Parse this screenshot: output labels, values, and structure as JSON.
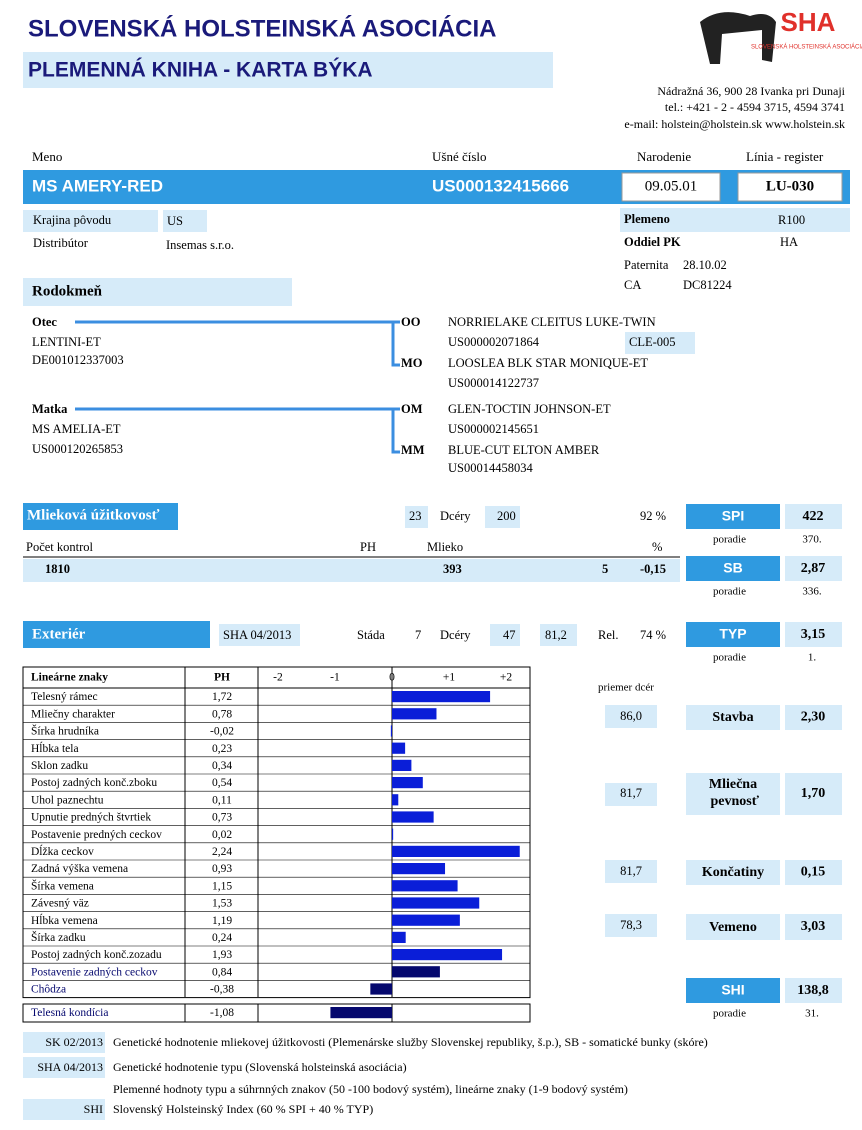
{
  "header": {
    "title1": "SLOVENSKÁ HOLSTEINSKÁ ASOCIÁCIA",
    "title2": "PLEMENNÁ KNIHA - KARTA BÝKA",
    "logo": "SHA",
    "logo_sub": "SLOVENSKÁ HOLSTEINSKÁ ASOCIÁCIA",
    "address": [
      "Nádražná 36, 900 28 Ivanka pri Dunaji",
      "tel.: +421 - 2 - 4594 3715, 4594 3741",
      "e-mail: holstein@holstein.sk    www.holstein.sk"
    ]
  },
  "identity": {
    "labels": [
      "Meno",
      "Ušné číslo",
      "Narodenie",
      "Línia - register"
    ],
    "name": "MS AMERY-RED",
    "ear_tag": "US000132415666",
    "born": "09.05.01",
    "line": "LU-030"
  },
  "info": {
    "country_label": "Krajina pôvodu",
    "country": "US",
    "distributor_label": "Distribútor",
    "distributor": "Insemas s.r.o.",
    "breed_label": "Plemeno",
    "breed": "R100",
    "section_label": "Oddiel PK",
    "section": "HA",
    "paternity_label": "Paternita",
    "paternity": "28.10.02",
    "ca_label": "CA",
    "ca": "DC81224"
  },
  "pedigree": {
    "title": "Rodokmeň",
    "sire_label": "Otec",
    "sire": "LENTINI-ET",
    "sire_id": "DE001012337003",
    "oo_label": "OO",
    "oo": "NORRIELAKE CLEITUS LUKE-TWIN",
    "oo_id": "US000002071864",
    "oo_code": "CLE-005",
    "mo_label": "MO",
    "mo": "LOOSLEA BLK STAR MONIQUE-ET",
    "mo_id": "US000014122737",
    "dam_label": "Matka",
    "dam": "MS AMELIA-ET",
    "dam_id": "US000120265853",
    "om_label": "OM",
    "om": "GLEN-TOCTIN JOHNSON-ET",
    "om_id": "US000002145651",
    "mm_label": "MM",
    "mm": "BLUE-CUT ELTON AMBER",
    "mm_id": "US00014458034"
  },
  "milk": {
    "title": "Mlieková úžitkovosť",
    "herds": "23",
    "daughters_label": "Dcéry",
    "daughters": "200",
    "rel": "92 %",
    "tests_label": "Počet kontrol",
    "ph": "PH",
    "milk": "Mlieko",
    "pct": "%",
    "tests": "1810",
    "milk_val": "393",
    "protein": "5",
    "pct_val": "-0,15"
  },
  "indexes": {
    "spi_label": "SPI",
    "spi": "422",
    "rank_label": "poradie",
    "spi_rank": "370.",
    "sb_label": "SB",
    "sb": "2,87",
    "sb_rank": "336.",
    "typ_label": "TYP",
    "typ": "3,15",
    "typ_rank": "1.",
    "shi_label": "SHI",
    "shi": "138,8",
    "shi_rank": "31."
  },
  "exterior": {
    "title": "Exteriér",
    "eval": "SHA 04/2013",
    "herds_label": "Stáda",
    "herds": "7",
    "daughters_label": "Dcéry",
    "daughters": "47",
    "avg": "81,2",
    "rel_label": "Rel.",
    "rel": "74 %"
  },
  "traits": {
    "header_name": "Lineárne znaky",
    "header_ph": "PH",
    "names": [
      "Telesný rámec",
      "Mliečny charakter",
      "Šírka hrudníka",
      "Hĺbka tela",
      "Sklon zadku",
      "Postoj zadných konč.zboku",
      "Uhol paznechtu",
      "Upnutie predných štvrtiek",
      "Postavenie predných ceckov",
      "Dĺžka ceckov",
      "Zadná výška vemena",
      "Šírka vemena",
      "Závesný väz",
      "Hĺbka vemena",
      "Šírka zadku",
      "Postoj zadných konč.zozadu",
      "Postavenie zadných ceckov",
      "Chôdza",
      "Telesná kondícia"
    ],
    "values": [
      1.72,
      0.78,
      -0.02,
      0.23,
      0.34,
      0.54,
      0.11,
      0.73,
      0.02,
      2.24,
      0.93,
      1.15,
      1.53,
      1.19,
      0.24,
      1.93,
      0.84,
      -0.38,
      -1.08
    ],
    "value_labels": [
      "1,72",
      "0,78",
      "-0,02",
      "0,23",
      "0,34",
      "0,54",
      "0,11",
      "0,73",
      "0,02",
      "2,24",
      "0,93",
      "1,15",
      "1,53",
      "1,19",
      "0,24",
      "1,93",
      "0,84",
      "-0,38",
      "-1,08"
    ],
    "colors": [
      "#0a1ed8",
      "#0a1ed8",
      "#0a1ed8",
      "#0a1ed8",
      "#0a1ed8",
      "#0a1ed8",
      "#0a1ed8",
      "#0a1ed8",
      "#0a1ed8",
      "#0a1ed8",
      "#0a1ed8",
      "#0a1ed8",
      "#0a1ed8",
      "#0a1ed8",
      "#0a1ed8",
      "#0a1ed8",
      "#05086e",
      "#05086e",
      "#05086e"
    ],
    "xlim": [
      -2.35,
      2.42
    ],
    "xticks": [
      -2,
      {
        "value": -1,
        "label": "-1"
      },
      0,
      {
        "value": 1,
        "label": "+1"
      },
      {
        "value": 2,
        "label": "+2"
      }
    ]
  },
  "composites": {
    "avg_label": "priemer dcér",
    "frame": "Stavba",
    "frame_avg": "86,0",
    "frame_val": "2,30",
    "dairy": "Mliečna pevnosť",
    "dairy_avg": "81,7",
    "dairy_val": "1,70",
    "legs": "Končatiny",
    "legs_avg": "81,7",
    "legs_val": "0,15",
    "udder": "Vemeno",
    "udder_avg": "78,3",
    "udder_val": "3,03"
  },
  "footer": [
    {
      "code": "SK 02/2013",
      "text": "Genetické hodnotenie mliekovej úžitkovosti (Plemenárske služby Slovenskej republiky, š.p.), SB - somatické bunky (skóre)"
    },
    {
      "code": "SHA 04/2013",
      "text": "Genetické hodnotenie typu (Slovenská holsteinská asociácia)"
    },
    {
      "text": "Plemenné hodnoty typu a súhrnných znakov (50 -100 bodový systém), lineárne znaky (1-9 bodový systém)"
    },
    {
      "code": "SHI",
      "text": "Slovenský Holsteinský Index (60 % SPI + 40 % TYP)"
    }
  ]
}
